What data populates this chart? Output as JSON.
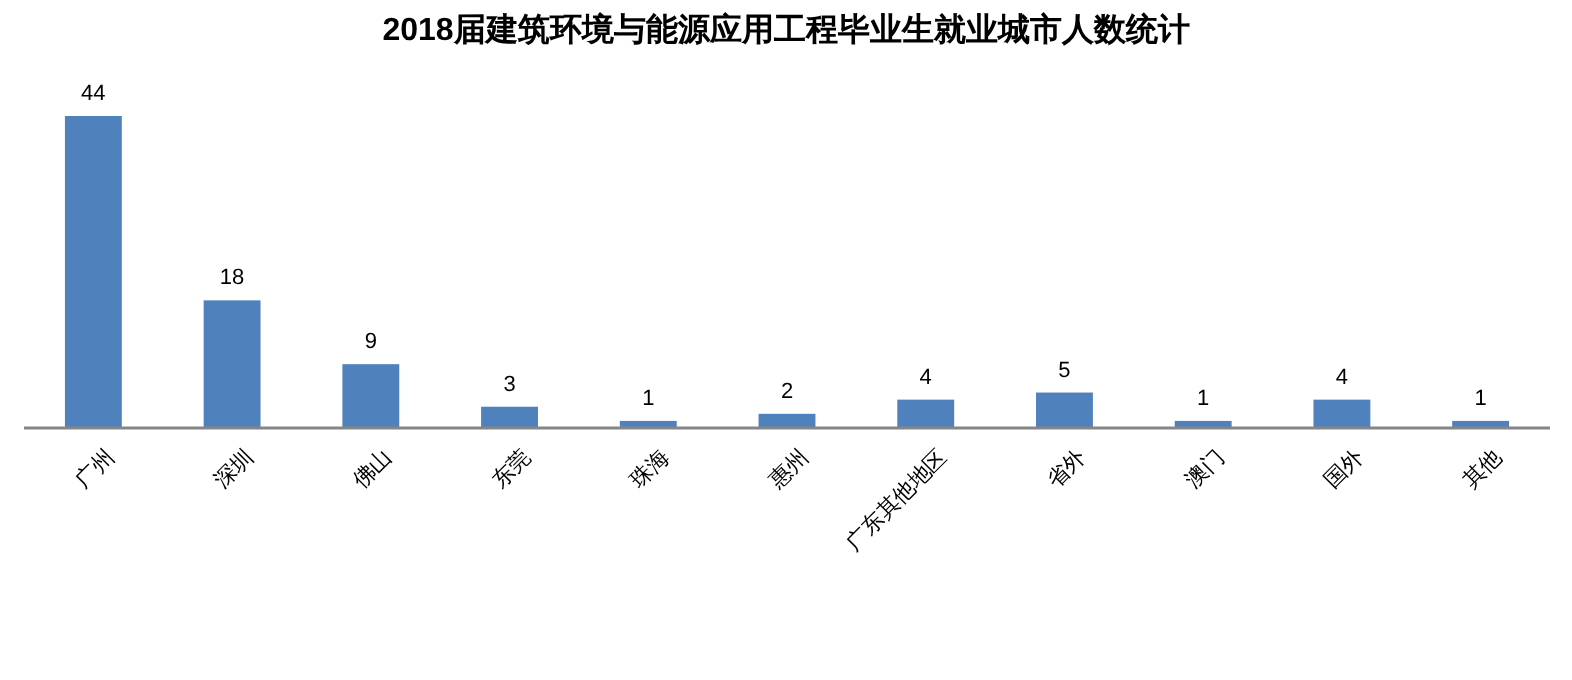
{
  "chart_data": {
    "type": "bar",
    "title": "2018届建筑环境与能源应用工程毕业生就业城市人数统计",
    "categories": [
      "广州",
      "深圳",
      "佛山",
      "东莞",
      "珠海",
      "惠州",
      "广东其他地区",
      "省外",
      "澳门",
      "国外",
      "其他"
    ],
    "values": [
      44,
      18,
      9,
      3,
      1,
      2,
      4,
      5,
      1,
      4,
      1
    ],
    "color": "#4f81bd",
    "data_labels": true
  }
}
